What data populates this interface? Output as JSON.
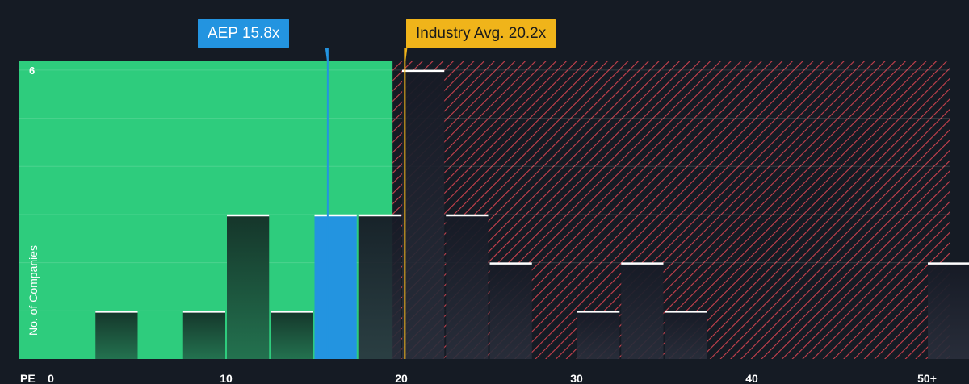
{
  "chart_data": {
    "type": "bar",
    "xlabel": "PE",
    "ylabel": "No. of Companies",
    "x_ticks": [
      0,
      10,
      20,
      30,
      40,
      50
    ],
    "x_tick_labels": [
      "0",
      "10",
      "20",
      "30",
      "40",
      "50+"
    ],
    "y_tick_values": [
      6
    ],
    "y_tick_labels": [
      "6"
    ],
    "xlim": [
      0,
      51.5
    ],
    "ylim": [
      0,
      6.2
    ],
    "bin_width": 2.5,
    "bins": [
      {
        "x": 2.5,
        "count": 1
      },
      {
        "x": 7.5,
        "count": 1
      },
      {
        "x": 10,
        "count": 3
      },
      {
        "x": 12.5,
        "count": 1
      },
      {
        "x": 15,
        "count": 3,
        "highlight": true
      },
      {
        "x": 17.5,
        "count": 3
      },
      {
        "x": 20,
        "count": 6
      },
      {
        "x": 22.5,
        "count": 3
      },
      {
        "x": 25,
        "count": 2
      },
      {
        "x": 30,
        "count": 1
      },
      {
        "x": 32.5,
        "count": 2
      },
      {
        "x": 35,
        "count": 1
      },
      {
        "x": 50,
        "count": 2
      }
    ],
    "company": {
      "label": "AEP 15.8x",
      "value": 15.8
    },
    "industry_avg": {
      "label": "Industry Avg. 20.2x",
      "value": 20.2
    },
    "colors": {
      "background": "#151b24",
      "undervalued_zone": "#2ecc7d",
      "overvalued_hatch": "#c8414d",
      "company": "#2394e0",
      "industry": "#f0b41a",
      "bar_top": "#ffffff"
    }
  }
}
